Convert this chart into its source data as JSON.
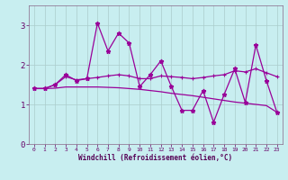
{
  "x": [
    0,
    1,
    2,
    3,
    4,
    5,
    6,
    7,
    8,
    9,
    10,
    11,
    12,
    13,
    14,
    15,
    16,
    17,
    18,
    19,
    20,
    21,
    22,
    23
  ],
  "series_jagged": [
    1.4,
    1.4,
    1.5,
    1.75,
    1.6,
    1.65,
    3.05,
    2.35,
    2.8,
    2.55,
    1.45,
    1.75,
    2.1,
    1.45,
    0.85,
    0.85,
    1.35,
    0.55,
    1.25,
    1.9,
    1.05,
    2.5,
    1.6,
    0.8
  ],
  "series_rising": [
    1.4,
    1.4,
    1.5,
    1.7,
    1.62,
    1.65,
    1.68,
    1.72,
    1.75,
    1.72,
    1.65,
    1.65,
    1.72,
    1.7,
    1.68,
    1.65,
    1.68,
    1.72,
    1.75,
    1.85,
    1.82,
    1.9,
    1.8,
    1.7
  ],
  "series_decline": [
    1.4,
    1.4,
    1.41,
    1.44,
    1.44,
    1.44,
    1.44,
    1.43,
    1.42,
    1.4,
    1.38,
    1.35,
    1.32,
    1.28,
    1.25,
    1.22,
    1.18,
    1.14,
    1.1,
    1.06,
    1.03,
    1.0,
    0.97,
    0.8
  ],
  "bg_color": "#c8eef0",
  "line_color": "#990099",
  "grid_color": "#aacccc",
  "xlabel": "Windchill (Refroidissement éolien,°C)",
  "ylim": [
    0,
    3.5
  ],
  "xlim": [
    -0.5,
    23.5
  ],
  "yticks": [
    0,
    1,
    2,
    3
  ],
  "xticks": [
    0,
    1,
    2,
    3,
    4,
    5,
    6,
    7,
    8,
    9,
    10,
    11,
    12,
    13,
    14,
    15,
    16,
    17,
    18,
    19,
    20,
    21,
    22,
    23
  ],
  "tick_color": "#660066",
  "label_color": "#550055"
}
